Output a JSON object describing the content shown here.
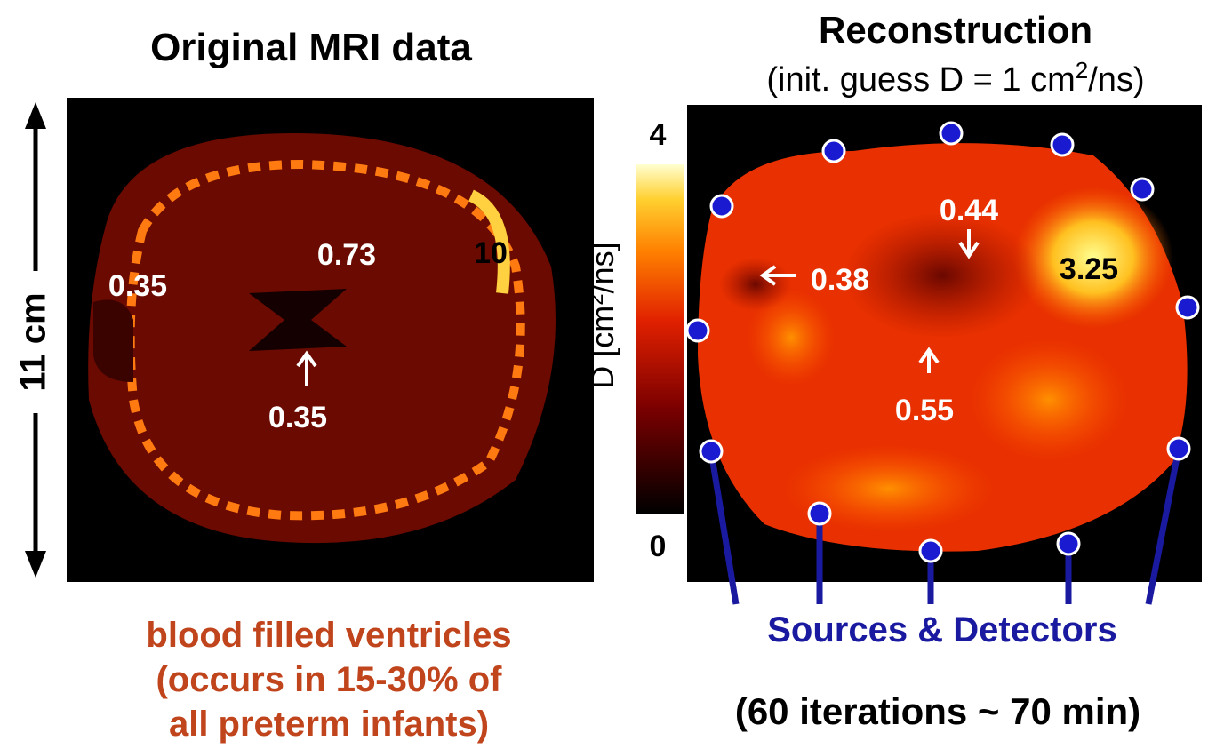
{
  "left_panel": {
    "title": "Original MRI data",
    "scale_label": "11 cm",
    "labels": [
      "0.35",
      "0.73",
      "10",
      "0.35"
    ],
    "caption": [
      "blood filled ventricles",
      "(occurs in 15-30% of",
      "all preterm infants)"
    ]
  },
  "right_panel": {
    "title": "Reconstruction",
    "subtitle": [
      "(init.  guess D = 1 cm",
      "2",
      "/ns)"
    ],
    "colorbar_label": [
      "D [cm",
      "2",
      "/ns]"
    ],
    "colorbar_ticks": [
      "4",
      "0"
    ],
    "labels": [
      "0.44",
      "0.38",
      "3.25",
      "0.55"
    ],
    "sources_label": "Sources & Detectors",
    "footnote": "(60 iterations ~ 70 min)"
  }
}
